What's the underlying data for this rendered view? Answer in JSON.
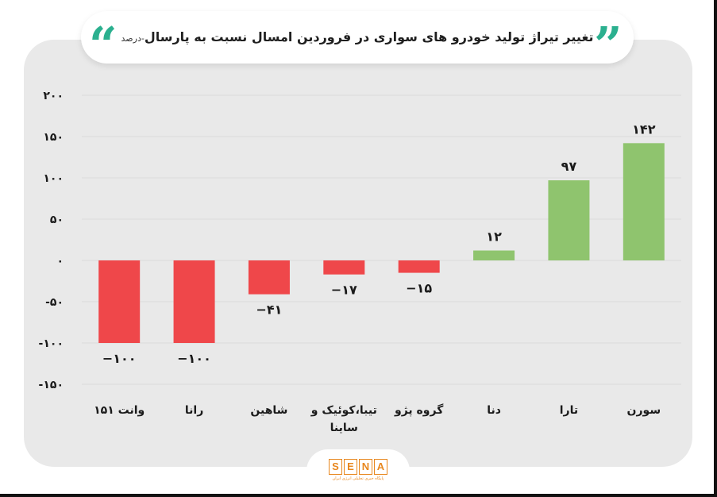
{
  "title": {
    "main": "تغییر تیراژ تولید خودرو های سواری در فروردین امسال نسبت به پارسال",
    "unit": "-درصد"
  },
  "logo": {
    "letters": [
      "S",
      "E",
      "N",
      "A"
    ],
    "subtitle": "پایگاه خبری تحلیلی انرژی ایران"
  },
  "colors": {
    "positive": "#8fc46e",
    "negative": "#ef474a",
    "quote": "#2bb08f",
    "logo": "#e8871e",
    "panel": "#e9e9e9"
  },
  "chart_data": {
    "type": "bar",
    "title": "تغییر تیراژ تولید خودرو های سواری در فروردین امسال نسبت به پارسال",
    "ylabel": "",
    "xlabel": "",
    "categories": [
      "وانت ۱۵۱",
      "رانا",
      "شاهین",
      "تیبا،کوئیک و ساینا",
      "گروه پژو",
      "دنا",
      "تارا",
      "سورن"
    ],
    "category_lines": [
      [
        "وانت ۱۵۱"
      ],
      [
        "رانا"
      ],
      [
        "شاهین"
      ],
      [
        "تیبا،کوئیک و",
        "ساینا"
      ],
      [
        "گروه پژو"
      ],
      [
        "دنا"
      ],
      [
        "تارا"
      ],
      [
        "سورن"
      ]
    ],
    "values": [
      -100,
      -100,
      -41,
      -17,
      -15,
      12,
      97,
      142
    ],
    "value_labels": [
      "−۱۰۰",
      "−۱۰۰",
      "−۴۱",
      "−۱۷",
      "−۱۵",
      "۱۲",
      "۹۷",
      "۱۴۲"
    ],
    "ylim": [
      -150,
      200
    ],
    "yticks": [
      200,
      150,
      100,
      50,
      0,
      -50,
      -100,
      -150
    ],
    "ytick_labels": [
      "۲۰۰",
      "۱۵۰",
      "۱۰۰",
      "۵۰",
      "۰",
      "-۵۰",
      "-۱۰۰",
      "-۱۵۰"
    ],
    "grid": true,
    "legend": "none"
  }
}
